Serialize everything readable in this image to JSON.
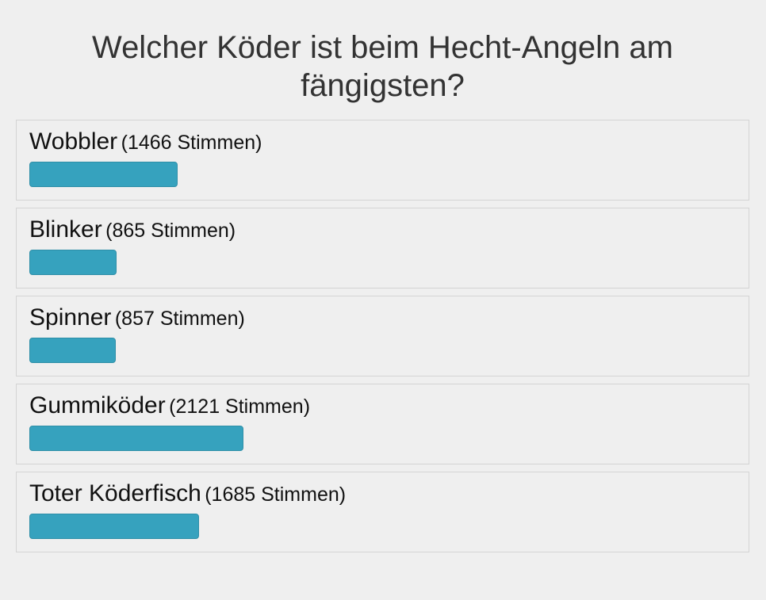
{
  "poll": {
    "question": "Welcher Köder ist beim Hecht-Angeln am fängigsten?",
    "bar_color": "#36a2be",
    "options": [
      {
        "label": "Wobbler",
        "votes_text": "(1466 Stimmen)",
        "votes": 1466
      },
      {
        "label": "Blinker",
        "votes_text": "(865 Stimmen)",
        "votes": 865
      },
      {
        "label": "Spinner",
        "votes_text": "(857 Stimmen)",
        "votes": 857
      },
      {
        "label": "Gummiköder",
        "votes_text": "(2121 Stimmen)",
        "votes": 2121
      },
      {
        "label": "Toter Köderfisch",
        "votes_text": "(1685 Stimmen)",
        "votes": 1685
      }
    ]
  }
}
